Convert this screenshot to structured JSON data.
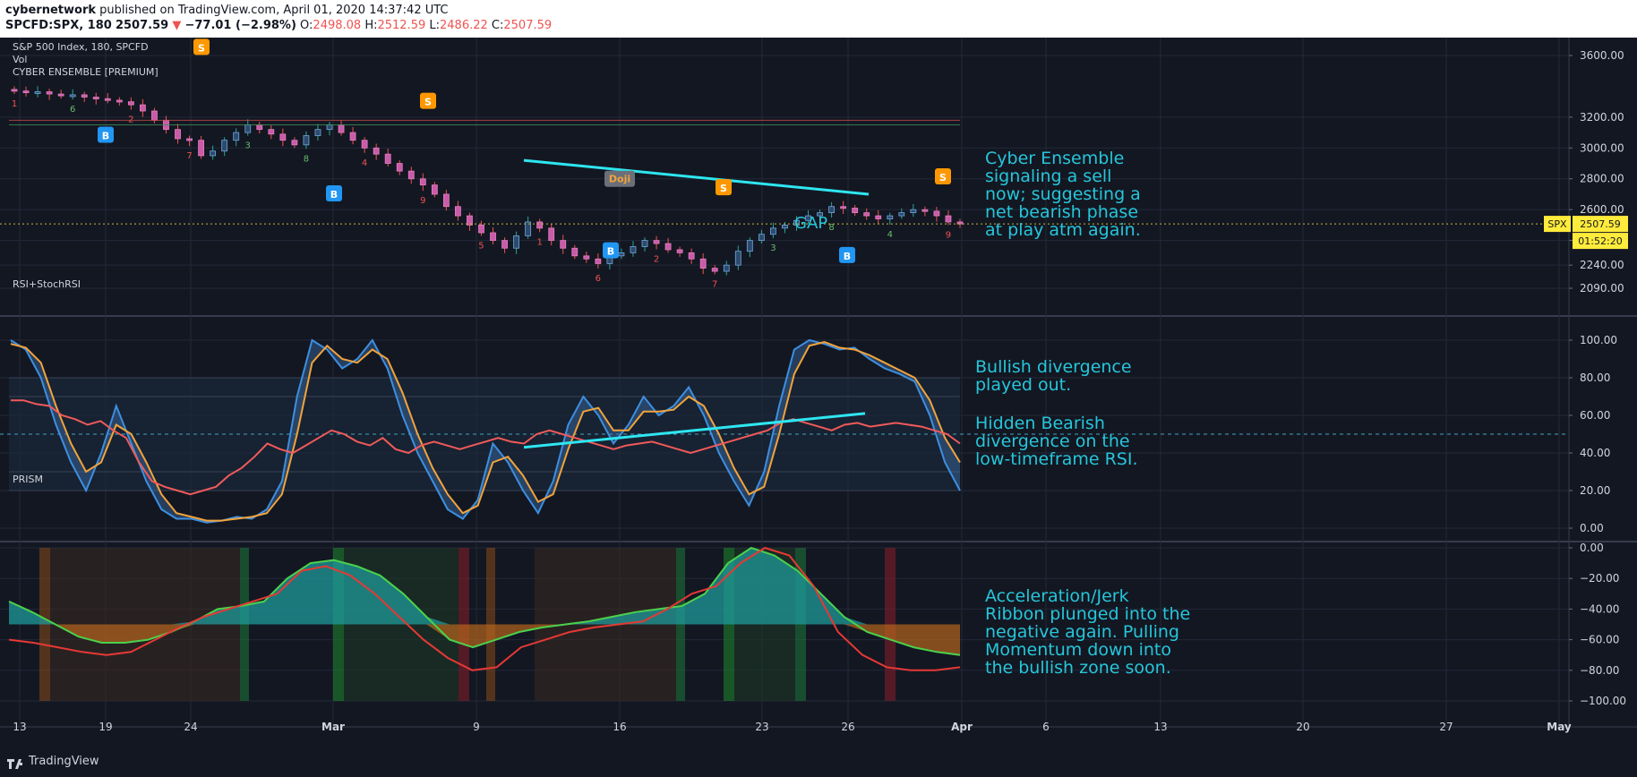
{
  "header": {
    "author": "cybernetwork",
    "published": "published on TradingView.com, April 01, 2020 14:37:42 UTC",
    "symbol": "SPCFD:SPX, 180",
    "last": "2507.59",
    "change": "−77.01 (−2.98%)",
    "open_label": "O:",
    "open": "2498.08",
    "high_label": "H:",
    "high": "2512.59",
    "low_label": "L:",
    "low": "2486.22",
    "close_label": "C:",
    "close": "2507.59"
  },
  "footer": {
    "brand": "TradingView"
  },
  "colors": {
    "bg": "#131722",
    "up": "#26a69a",
    "down": "#ef5350",
    "trend": "#2ee6f0",
    "annotation": "#26c6da",
    "rsi": "#f05a5a",
    "stoch_k": "#3d8fe0",
    "stoch_d": "#f2a33a",
    "buy": "#2196f3",
    "sell": "#ff9800",
    "price_tag": "#ffeb3b"
  },
  "chart_data": [
    {
      "type": "candlestick",
      "title": "S&P 500 Index, 180, SPCFD",
      "indicators": [
        "Vol",
        "CYBER ENSEMBLE [PREMIUM]"
      ],
      "ylim": [
        2000,
        3700
      ],
      "yticks": [
        "3600.00",
        "3200.00",
        "3000.00",
        "2800.00",
        "2600.00",
        "2400.00",
        "2240.00",
        "2090.00"
      ],
      "ytick_values": [
        3600,
        3200,
        3000,
        2800,
        2600,
        2400,
        2240,
        2090
      ],
      "price_tag": {
        "symbol": "SPX",
        "value": "2507.59",
        "countdown": "01:52:20"
      },
      "closes": [
        3370,
        3360,
        3365,
        3350,
        3340,
        3345,
        3330,
        3320,
        3310,
        3300,
        3280,
        3240,
        3180,
        3120,
        3060,
        3050,
        2950,
        2980,
        3050,
        3100,
        3150,
        3120,
        3090,
        3050,
        3020,
        3080,
        3120,
        3150,
        3100,
        3050,
        3000,
        2960,
        2900,
        2850,
        2800,
        2760,
        2700,
        2620,
        2560,
        2500,
        2450,
        2400,
        2350,
        2430,
        2520,
        2480,
        2400,
        2350,
        2300,
        2280,
        2250,
        2300,
        2320,
        2360,
        2400,
        2380,
        2340,
        2320,
        2280,
        2220,
        2200,
        2240,
        2330,
        2400,
        2440,
        2480,
        2500,
        2530,
        2560,
        2580,
        2620,
        2610,
        2580,
        2560,
        2540,
        2560,
        2580,
        2600,
        2590,
        2560,
        2520,
        2507
      ],
      "signals": [
        {
          "label": "B",
          "type": "buy",
          "date": "Feb 19"
        },
        {
          "label": "S",
          "type": "sell",
          "date": "Feb 24"
        },
        {
          "label": "B",
          "type": "buy",
          "date": "Mar 1"
        },
        {
          "label": "S",
          "type": "sell",
          "date": "Mar 6"
        },
        {
          "label": "B",
          "type": "buy",
          "date": "Mar 15"
        },
        {
          "label": "S",
          "type": "sell",
          "date": "Mar 20"
        },
        {
          "label": "B",
          "type": "buy",
          "date": "Mar 26"
        },
        {
          "label": "S",
          "type": "sell",
          "date": "Mar 31"
        }
      ],
      "doji_label": "Doji",
      "gap_label": "GAP",
      "annotation": "Cyber Ensemble\nsignaling a sell\nnow; suggesting a\nnet bearish phase\nat play atm again."
    },
    {
      "type": "line",
      "title": "RSI+StochRSI",
      "ylim": [
        0,
        100
      ],
      "yticks": [
        "100.00",
        "80.00",
        "60.00",
        "40.00",
        "20.00",
        "0.00"
      ],
      "ytick_values": [
        100,
        80,
        60,
        40,
        20,
        0
      ],
      "series": [
        {
          "values": [
            68,
            68,
            66,
            65,
            60,
            58,
            55,
            57,
            52,
            48,
            35,
            25,
            22,
            20,
            18,
            20,
            22,
            28,
            32,
            38,
            45,
            42,
            40,
            44,
            48,
            52,
            50,
            46,
            44,
            48,
            42,
            40,
            44,
            46,
            44,
            42,
            44,
            46,
            48,
            46,
            45,
            50,
            52,
            50,
            48,
            46,
            44,
            42,
            44,
            45,
            46,
            44,
            42,
            40,
            42,
            44,
            46,
            48,
            50,
            52,
            56,
            58,
            56,
            54,
            52,
            55,
            56,
            54,
            55,
            56,
            55,
            54,
            52,
            50,
            45
          ]
        },
        {
          "values": [
            100,
            95,
            80,
            55,
            35,
            20,
            40,
            65,
            45,
            25,
            10,
            5,
            5,
            3,
            4,
            6,
            5,
            10,
            25,
            70,
            100,
            95,
            85,
            90,
            100,
            85,
            60,
            40,
            25,
            10,
            5,
            15,
            45,
            35,
            20,
            8,
            25,
            55,
            70,
            60,
            45,
            55,
            70,
            60,
            65,
            75,
            60,
            40,
            25,
            12,
            30,
            65,
            95,
            100,
            98,
            95,
            96,
            90,
            85,
            82,
            78,
            60,
            35,
            20
          ]
        },
        {
          "values": [
            98,
            96,
            88,
            65,
            45,
            30,
            35,
            55,
            50,
            35,
            18,
            8,
            6,
            4,
            4,
            5,
            6,
            8,
            18,
            50,
            88,
            97,
            90,
            88,
            95,
            90,
            72,
            50,
            32,
            18,
            8,
            12,
            35,
            38,
            28,
            14,
            18,
            42,
            62,
            64,
            52,
            52,
            62,
            62,
            63,
            70,
            65,
            50,
            32,
            18,
            22,
            50,
            82,
            97,
            99,
            96,
            95,
            92,
            88,
            84,
            80,
            68,
            48,
            35
          ]
        }
      ],
      "annotations": [
        "Bullish divergence\nplayed out.",
        "Hidden Bearish\ndivergence on the\nlow-timeframe RSI."
      ]
    },
    {
      "type": "area",
      "title": "PRISM",
      "ylim": [
        -105,
        0
      ],
      "yticks": [
        "0.00",
        "−20.00",
        "−40.00",
        "−60.00",
        "−80.00",
        "−100.00"
      ],
      "ytick_values": [
        0,
        -20,
        -40,
        -60,
        -80,
        -100
      ],
      "series": [
        {
          "values": [
            -35,
            -42,
            -50,
            -58,
            -62,
            -62,
            -60,
            -55,
            -48,
            -40,
            -38,
            -35,
            -20,
            -10,
            -8,
            -12,
            -18,
            -30,
            -45,
            -60,
            -65,
            -60,
            -55,
            -52,
            -50,
            -48,
            -45,
            -42,
            -40,
            -38,
            -30,
            -10,
            0,
            -5,
            -15,
            -30,
            -45,
            -55,
            -60,
            -65,
            -68,
            -70
          ]
        },
        {
          "values": [
            -60,
            -62,
            -65,
            -68,
            -70,
            -68,
            -60,
            -52,
            -45,
            -40,
            -35,
            -30,
            -15,
            -12,
            -18,
            -30,
            -45,
            -60,
            -72,
            -80,
            -78,
            -65,
            -60,
            -55,
            -52,
            -50,
            -48,
            -40,
            -30,
            -25,
            -10,
            0,
            -5,
            -25,
            -55,
            -70,
            -78,
            -80,
            -80,
            -78
          ]
        }
      ],
      "annotation": "Acceleration/Jerk\nRibbon plunged into the\nnegative again. Pulling\nMomentum down into\nthe bullish zone soon."
    }
  ],
  "x_axis": {
    "labels": [
      "13",
      "19",
      "24",
      "Mar",
      "9",
      "16",
      "23",
      "26",
      "Apr",
      "6",
      "13",
      "20",
      "27",
      "May"
    ]
  }
}
